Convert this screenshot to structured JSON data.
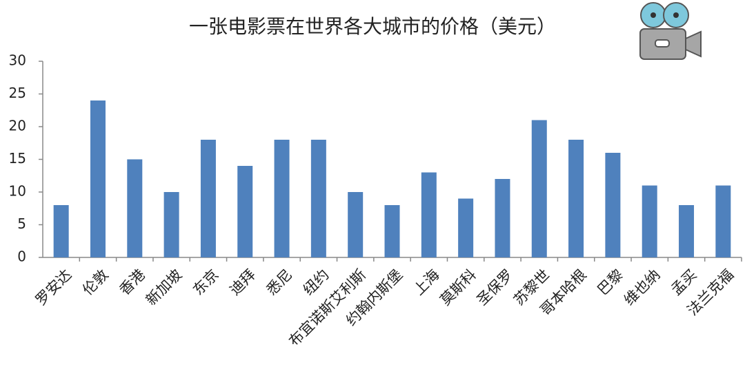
{
  "chart_data": {
    "type": "bar",
    "title": "一张电影票在世界各大城市的价格（美元）",
    "categories": [
      "罗安达",
      "伦敦",
      "香港",
      "新加坡",
      "东京",
      "迪拜",
      "悉尼",
      "纽约",
      "布宜诺斯艾利斯",
      "约翰内斯堡",
      "上海",
      "莫斯科",
      "圣保罗",
      "苏黎世",
      "哥本哈根",
      "巴黎",
      "维也纳",
      "孟买",
      "法兰克福"
    ],
    "values": [
      8,
      24,
      15,
      10,
      18,
      14,
      18,
      18,
      10,
      8,
      13,
      9,
      12,
      21,
      18,
      16,
      11,
      8,
      11
    ],
    "color": "#4f81bd",
    "ylim": [
      0,
      30
    ],
    "yticks": [
      0,
      5,
      10,
      15,
      20,
      25,
      30
    ],
    "grid": false
  }
}
